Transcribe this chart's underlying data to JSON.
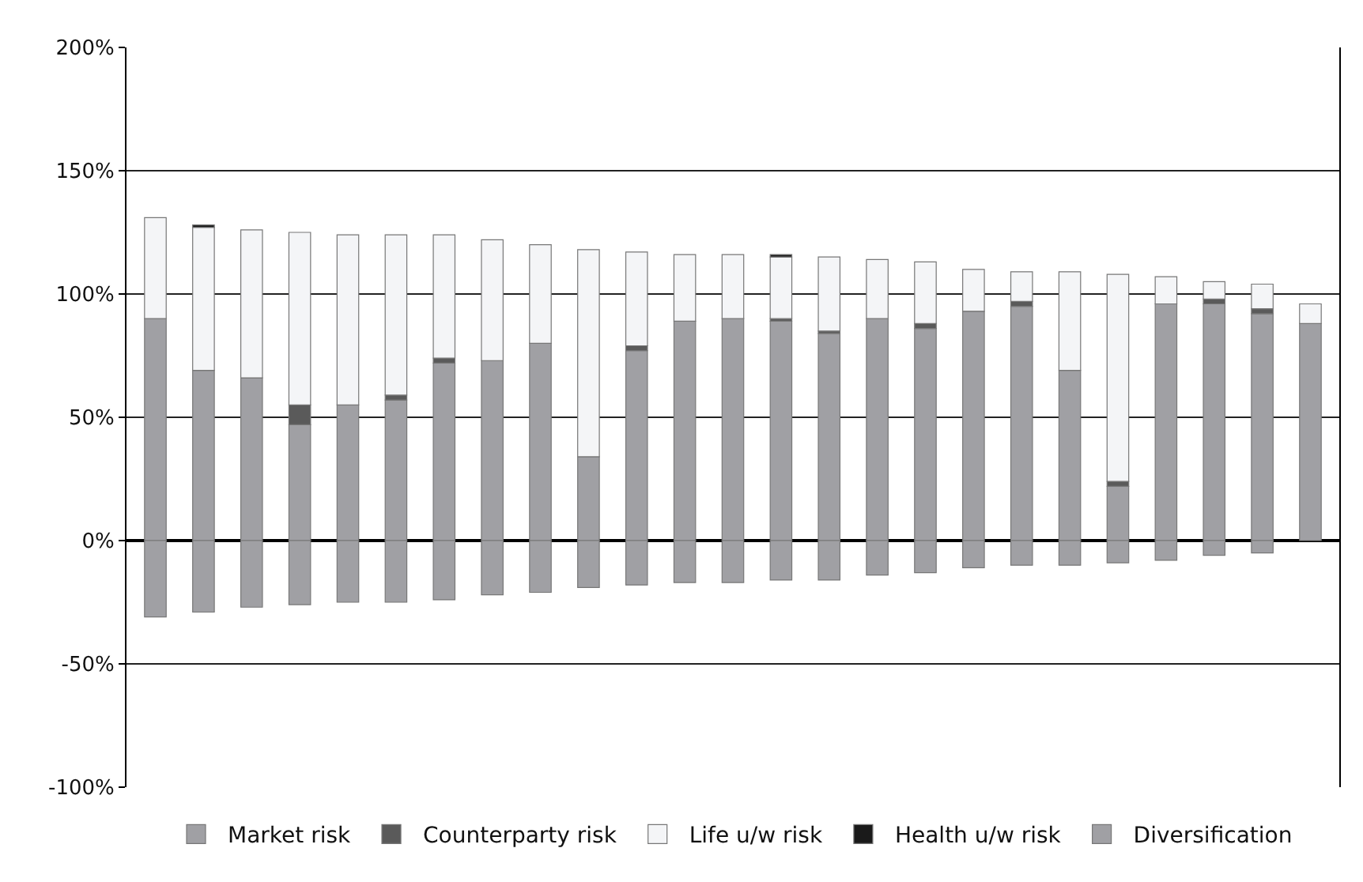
{
  "chart_data": {
    "type": "bar",
    "stacked": true,
    "categories": [
      null,
      null,
      null,
      null,
      null,
      null,
      null,
      null,
      null,
      null,
      null,
      null,
      null,
      null,
      null,
      null,
      null,
      null,
      null,
      null,
      null,
      null,
      null,
      null,
      null
    ],
    "series": [
      {
        "name": "Market risk",
        "color": "#a0a0a4",
        "values": [
          90,
          69,
          66,
          47,
          55,
          57,
          72,
          73,
          80,
          34,
          77,
          89,
          90,
          89,
          84,
          90,
          86,
          93,
          95,
          69,
          22,
          96,
          96,
          92,
          88
        ]
      },
      {
        "name": "Counterparty risk",
        "color": "#5a5a5a",
        "values": [
          null,
          null,
          null,
          8,
          null,
          2,
          2,
          null,
          null,
          null,
          2,
          null,
          null,
          1,
          1,
          null,
          2,
          null,
          2,
          null,
          2,
          null,
          2,
          2,
          null
        ]
      },
      {
        "name": "Life u/w risk",
        "color": "#f4f5f7",
        "values": [
          41,
          58,
          60,
          70,
          69,
          65,
          50,
          49,
          40,
          84,
          38,
          27,
          26,
          25,
          30,
          24,
          25,
          17,
          12,
          40,
          84,
          11,
          7,
          10,
          8
        ]
      },
      {
        "name": "Health u/w risk",
        "color": "#1a1a1a",
        "values": [
          null,
          1,
          null,
          null,
          null,
          null,
          null,
          null,
          null,
          null,
          null,
          null,
          null,
          1,
          null,
          null,
          null,
          null,
          null,
          null,
          null,
          null,
          null,
          null,
          null
        ]
      },
      {
        "name": "Diversification",
        "color": "#a0a0a4",
        "values": [
          -31,
          -29,
          -27,
          -26,
          -25,
          -25,
          -24,
          -22,
          -21,
          -19,
          -18,
          -17,
          -17,
          -16,
          -16,
          -14,
          -13,
          -11,
          -10,
          -10,
          -9,
          -8,
          -6,
          -5,
          null
        ]
      }
    ],
    "ylim": [
      -100,
      200
    ],
    "yticks": [
      {
        "value": -100,
        "label": "-100%"
      },
      {
        "value": -50,
        "label": "-50%"
      },
      {
        "value": 0,
        "label": "0%"
      },
      {
        "value": 50,
        "label": "50%"
      },
      {
        "value": 100,
        "label": "100%"
      },
      {
        "value": 150,
        "label": "150%"
      },
      {
        "value": 200,
        "label": "200%"
      }
    ],
    "grid": "y",
    "legend": "bottom"
  }
}
